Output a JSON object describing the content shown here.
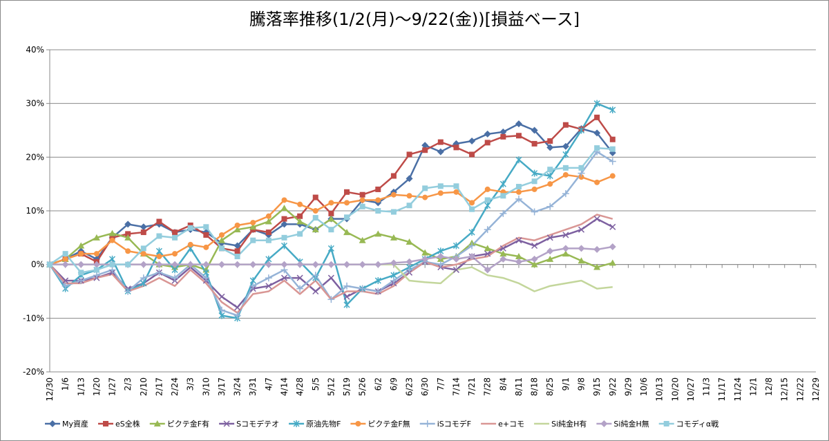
{
  "chart_data": {
    "type": "line",
    "title": "騰落率推移(1/2(月)～9/22(金))[損益ベース]",
    "categories": [
      "12/30",
      "1/6",
      "1/13",
      "1/20",
      "1/27",
      "2/3",
      "2/10",
      "2/17",
      "2/24",
      "3/3",
      "3/10",
      "3/17",
      "3/24",
      "3/31",
      "4/7",
      "4/14",
      "4/28",
      "5/5",
      "5/12",
      "5/19",
      "5/26",
      "6/2",
      "6/9",
      "6/23",
      "6/30",
      "7/7",
      "7/14",
      "7/21",
      "7/28",
      "8/4",
      "8/11",
      "8/18",
      "8/25",
      "9/1",
      "9/8",
      "9/15",
      "9/22",
      "9/29",
      "10/6",
      "10/13",
      "10/20",
      "10/27",
      "11/3",
      "11/17",
      "11/24",
      "12/1",
      "12/8",
      "12/15",
      "12/22",
      "12/29"
    ],
    "ylim": [
      -20,
      40
    ],
    "yticks": [
      {
        "value": -20,
        "label": "-20%"
      },
      {
        "value": -10,
        "label": "-10%"
      },
      {
        "value": 0,
        "label": "0%"
      },
      {
        "value": 10,
        "label": "10%"
      },
      {
        "value": 20,
        "label": "20%"
      },
      {
        "value": 30,
        "label": "30%"
      },
      {
        "value": 40,
        "label": "40%"
      }
    ],
    "grid": true,
    "legend": "bottom",
    "series": [
      {
        "name": "My資産",
        "color": "#4a6fa5",
        "marker": "diamond",
        "values": [
          0,
          1,
          2.5,
          1,
          5,
          7.5,
          7,
          7.5,
          6,
          6.5,
          6,
          4,
          3.5,
          6.5,
          5.5,
          7.5,
          7.5,
          6.5,
          8.5,
          8.5,
          12,
          11.5,
          13.5,
          16,
          22.2,
          21,
          22.5,
          23,
          24.3,
          24.7,
          26.2,
          25,
          21.8,
          22,
          25.3,
          24.5,
          20.8,
          null,
          null,
          null,
          null,
          null,
          null,
          null,
          null,
          null,
          null,
          null,
          null,
          null
        ]
      },
      {
        "name": "eS全株",
        "color": "#be4b48",
        "marker": "square",
        "values": [
          0,
          1,
          2,
          0.5,
          5,
          5.7,
          6,
          8,
          6,
          7.3,
          5.5,
          3,
          2.5,
          6.5,
          6,
          8.5,
          9,
          12.5,
          9.5,
          13.5,
          13,
          14,
          16.5,
          20.5,
          21.3,
          22.8,
          21.8,
          20.5,
          22.7,
          23.8,
          24,
          22.5,
          23,
          26,
          25.2,
          27.4,
          23.3,
          null,
          null,
          null,
          null,
          null,
          null,
          null,
          null,
          null,
          null,
          null,
          null,
          null
        ]
      },
      {
        "name": "ピクテ金F有",
        "color": "#98b954",
        "marker": "triangle",
        "values": [
          0,
          1,
          3.5,
          5,
          5.8,
          5,
          2,
          0,
          -0.5,
          0,
          -1,
          4.5,
          6.5,
          7,
          8,
          10.5,
          8,
          6.5,
          8.5,
          6,
          4.5,
          5.7,
          5,
          4.2,
          2.2,
          1,
          1.5,
          4,
          3,
          2,
          1.5,
          0,
          1,
          2,
          0.7,
          -0.5,
          0.3,
          null,
          null,
          null,
          null,
          null,
          null,
          null,
          null,
          null,
          null,
          null,
          null,
          null
        ]
      },
      {
        "name": "Sコモデテオ",
        "color": "#7d60a0",
        "marker": "x",
        "values": [
          0,
          -3,
          -3,
          -2.5,
          -1.5,
          -4.5,
          -3.5,
          -1.5,
          -3,
          -0.5,
          -3,
          -6,
          -8,
          -4.5,
          -4,
          -2.5,
          -2.5,
          -5,
          -2.5,
          -6,
          -4.5,
          -5,
          -3.5,
          -1.5,
          0.5,
          -0.5,
          -1,
          1.5,
          2,
          3,
          4.5,
          3.5,
          5,
          5.5,
          6.5,
          8.5,
          7,
          null,
          null,
          null,
          null,
          null,
          null,
          null,
          null,
          null,
          null,
          null,
          null,
          null
        ]
      },
      {
        "name": "原油先物F",
        "color": "#46aac5",
        "marker": "star",
        "values": [
          0,
          -4.5,
          -2,
          -1,
          1,
          -5,
          -3.5,
          2.5,
          -1,
          3,
          -1.5,
          -9.5,
          -10,
          -3,
          1,
          3.5,
          0.5,
          -2.5,
          3,
          -7.5,
          -4.5,
          -3,
          -2,
          -0.5,
          1,
          2.5,
          3.5,
          6,
          11,
          15,
          19.5,
          17,
          16.5,
          20.5,
          25,
          30,
          28.8,
          null,
          null,
          null,
          null,
          null,
          null,
          null,
          null,
          null,
          null,
          null,
          null,
          null
        ]
      },
      {
        "name": "ピクテ金F無",
        "color": "#f79646",
        "marker": "circle",
        "values": [
          0,
          1,
          2,
          2,
          4.5,
          2.5,
          2,
          1.5,
          2,
          3.7,
          3.2,
          5.5,
          7.3,
          7.8,
          9,
          12,
          11.2,
          10,
          11.5,
          11.5,
          12,
          12,
          13,
          12.8,
          12.5,
          13.3,
          13.5,
          11.5,
          14,
          13.5,
          13.5,
          14,
          15,
          16.7,
          16.3,
          15.3,
          16.5,
          null,
          null,
          null,
          null,
          null,
          null,
          null,
          null,
          null,
          null,
          null,
          null,
          null
        ]
      },
      {
        "name": "iSコモデF",
        "color": "#95b3d7",
        "marker": "plus",
        "values": [
          0,
          -4,
          -3,
          -2,
          -1,
          -5,
          -2.5,
          -1.5,
          -2.5,
          0,
          -2.5,
          -8.5,
          -9.5,
          -4,
          -2.5,
          -1,
          -4.5,
          -2,
          -6.5,
          -4,
          -4.5,
          -5,
          -3,
          -1,
          0.5,
          0,
          1.5,
          3.5,
          6.5,
          9.5,
          12.2,
          9.8,
          10.8,
          13.2,
          17,
          21,
          19.2,
          null,
          null,
          null,
          null,
          null,
          null,
          null,
          null,
          null,
          null,
          null,
          null,
          null
        ]
      },
      {
        "name": "e+コモ",
        "color": "#d99694",
        "marker": "none",
        "values": [
          0,
          -3.5,
          -3.5,
          -2.5,
          -1.8,
          -5,
          -4,
          -2.5,
          -4,
          -1,
          -3.5,
          -7,
          -9,
          -5.5,
          -5,
          -3,
          -5.5,
          -3,
          -6.5,
          -5,
          -5,
          -5.5,
          -4,
          -1.5,
          0.5,
          -0.5,
          0,
          1,
          1.5,
          3.5,
          5,
          4.5,
          5.5,
          6.5,
          7.5,
          9.3,
          8.5,
          null,
          null,
          null,
          null,
          null,
          null,
          null,
          null,
          null,
          null,
          null,
          null,
          null
        ]
      },
      {
        "name": "Si純金H有",
        "color": "#c3d69b",
        "marker": "none",
        "values": [
          0,
          0,
          0,
          0,
          0,
          0,
          0,
          0,
          0,
          0,
          0,
          0,
          0,
          0,
          0,
          0,
          0,
          0,
          0,
          0,
          0,
          0,
          0,
          -3,
          -3.3,
          -3.5,
          -1,
          -0.5,
          -2,
          -2.5,
          -3.5,
          -5,
          -4,
          -3.5,
          -3,
          -4.5,
          -4.2,
          null,
          null,
          null,
          null,
          null,
          null,
          null,
          null,
          null,
          null,
          null,
          null,
          null
        ]
      },
      {
        "name": "Si純金H無",
        "color": "#b3a2c7",
        "marker": "diamond",
        "values": [
          0,
          0,
          0,
          0,
          0,
          0,
          0,
          0,
          0,
          0,
          0,
          0,
          0,
          0,
          0,
          0,
          0,
          0,
          0,
          0,
          0,
          0,
          0.3,
          0.5,
          1,
          1.5,
          1,
          1.5,
          -1,
          1,
          0.5,
          1,
          2.5,
          3,
          3,
          2.8,
          3.3,
          null,
          null,
          null,
          null,
          null,
          null,
          null,
          null,
          null,
          null,
          null,
          null,
          null
        ]
      },
      {
        "name": "コモディα戦",
        "color": "#93cddd",
        "marker": "square",
        "values": [
          0,
          2,
          -1.5,
          -1,
          0,
          0,
          3,
          5.3,
          5,
          6.8,
          7,
          3,
          1.5,
          4.5,
          4.5,
          5,
          5.7,
          8.7,
          6.5,
          8.8,
          10.8,
          10,
          9.8,
          11,
          14.2,
          14.6,
          14.6,
          10.3,
          12,
          12.8,
          14.5,
          15.5,
          17.7,
          18,
          18,
          21.7,
          21.5,
          null,
          null,
          null,
          null,
          null,
          null,
          null,
          null,
          null,
          null,
          null,
          null,
          null
        ]
      }
    ]
  }
}
